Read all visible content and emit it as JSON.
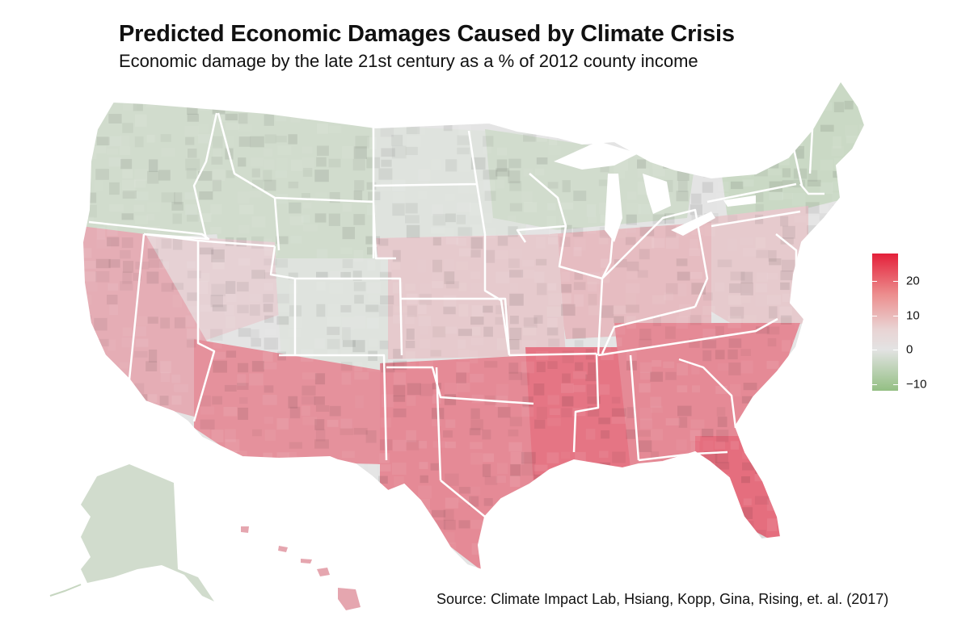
{
  "header": {
    "title": "Predicted Economic Damages Caused by Climate Crisis",
    "subtitle": "Economic damage by the late 21st century as a % of 2012 county income"
  },
  "legend": {
    "min": -12,
    "max": 28,
    "ticks": [
      {
        "value": 20,
        "label": "20"
      },
      {
        "value": 10,
        "label": "10"
      },
      {
        "value": 0,
        "label": "0"
      },
      {
        "value": -10,
        "label": "−10"
      }
    ],
    "colors": {
      "low": "#93bf83",
      "mid": "#e6e6e6",
      "high": "#e4203a"
    }
  },
  "map": {
    "regions": [
      {
        "name": "pacific-northwest",
        "damage": -3
      },
      {
        "name": "northern-rockies",
        "damage": -3
      },
      {
        "name": "northern-plains",
        "damage": -1
      },
      {
        "name": "upper-midwest",
        "damage": -3
      },
      {
        "name": "new-england",
        "damage": -4
      },
      {
        "name": "mid-atlantic",
        "damage": 4
      },
      {
        "name": "ohio-valley",
        "damage": 6
      },
      {
        "name": "central-plains",
        "damage": 4
      },
      {
        "name": "great-basin",
        "damage": 3
      },
      {
        "name": "four-corners",
        "damage": -1
      },
      {
        "name": "california",
        "damage": 8
      },
      {
        "name": "desert-southwest",
        "damage": 12
      },
      {
        "name": "southern-plains",
        "damage": 13
      },
      {
        "name": "gulf-coast",
        "damage": 16
      },
      {
        "name": "southeast",
        "damage": 13
      },
      {
        "name": "florida",
        "damage": 17
      },
      {
        "name": "alaska",
        "damage": -3
      },
      {
        "name": "hawaii",
        "damage": 9
      }
    ]
  },
  "source": "Source: Climate Impact Lab, Hsiang, Kopp, Gina, Rising, et. al. (2017)"
}
